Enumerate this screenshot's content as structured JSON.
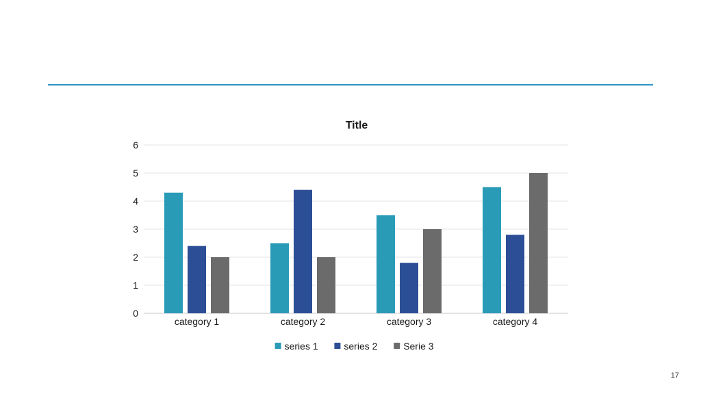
{
  "slide": {
    "page_number": "17",
    "rule_color": "#2E93C8"
  },
  "chart_data": {
    "type": "bar",
    "title": "Title",
    "xlabel": "",
    "ylabel": "",
    "categories": [
      "category 1",
      "category 2",
      "category 3",
      "category 4"
    ],
    "series": [
      {
        "name": "series 1",
        "color": "#2A9BB7",
        "values": [
          4.3,
          2.5,
          3.5,
          4.5
        ]
      },
      {
        "name": "series 2",
        "color": "#2B4E96",
        "values": [
          2.4,
          4.4,
          1.8,
          2.8
        ]
      },
      {
        "name": "Serie 3",
        "color": "#6B6B6B",
        "values": [
          2,
          2,
          3,
          5
        ]
      }
    ],
    "ylim": [
      0,
      6
    ],
    "yticks": [
      "0",
      "1",
      "2",
      "3",
      "4",
      "5",
      "6"
    ],
    "grid": true,
    "legend_position": "bottom"
  }
}
